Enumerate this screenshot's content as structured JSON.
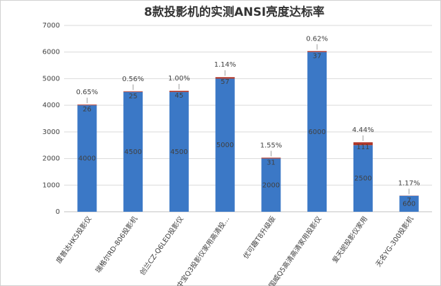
{
  "chart_data": {
    "type": "stacked_bar",
    "title": "8款投影机的实测ANSI亮度达标率",
    "categories": [
      "度普达HK5投影仪",
      "瑞格尔RD-806投影机",
      "创兰CZ-Q6LED投影仪",
      "中宝Q3投影仪家用高清投…",
      "优可趣T8升级版",
      "国威Q5高清高清家用投影仪",
      "爱天妮投影仪家用",
      "无名YG-300投影机"
    ],
    "series": [
      {
        "color": "#3b78c6",
        "values": [
          4000,
          4500,
          4500,
          5000,
          2000,
          6000,
          2500,
          600
        ]
      },
      {
        "color": "#b0392b",
        "values": [
          26,
          25,
          45,
          57,
          31,
          37,
          111,
          7
        ]
      }
    ],
    "annotations": [
      "0.65%",
      "0.56%",
      "1.00%",
      "1.14%",
      "1.55%",
      "0.62%",
      "4.44%",
      "1.17%"
    ],
    "ylim": [
      0,
      7000
    ],
    "yticks": [
      0,
      1000,
      2000,
      3000,
      4000,
      5000,
      6000,
      7000
    ],
    "grid": true
  }
}
